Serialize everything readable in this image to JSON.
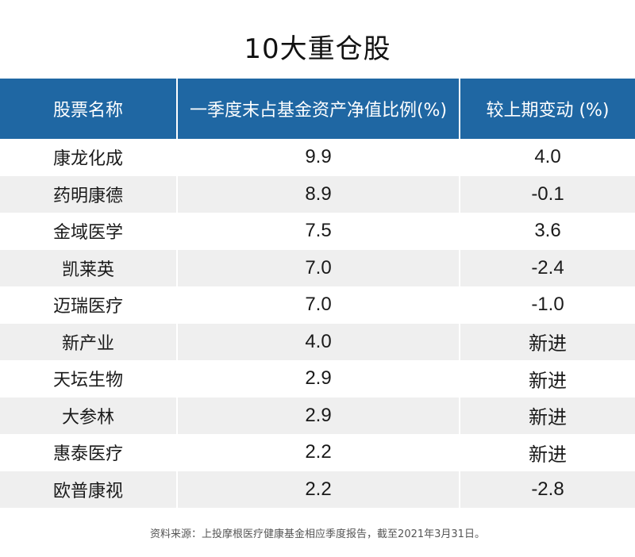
{
  "title": "10大重仓股",
  "table": {
    "headers": [
      "股票名称",
      "一季度末占基金资产净值比例(%)",
      "较上期变动 (%)"
    ],
    "rows": [
      {
        "name": "康龙化成",
        "ratio": "9.9",
        "change": "4.0"
      },
      {
        "name": "药明康德",
        "ratio": "8.9",
        "change": "-0.1"
      },
      {
        "name": "金域医学",
        "ratio": "7.5",
        "change": "3.6"
      },
      {
        "name": "凯莱英",
        "ratio": "7.0",
        "change": "-2.4"
      },
      {
        "name": "迈瑞医疗",
        "ratio": "7.0",
        "change": "-1.0"
      },
      {
        "name": "新产业",
        "ratio": "4.0",
        "change": "新进"
      },
      {
        "name": "天坛生物",
        "ratio": "2.9",
        "change": "新进"
      },
      {
        "name": "大参林",
        "ratio": "2.9",
        "change": "新进"
      },
      {
        "name": "惠泰医疗",
        "ratio": "2.2",
        "change": "新进"
      },
      {
        "name": "欧普康视",
        "ratio": "2.2",
        "change": "-2.8"
      }
    ]
  },
  "footer": "资料来源：上投摩根医疗健康基金相应季度报告，截至2021年3月31日。",
  "colors": {
    "header_bg": "#1f67a3",
    "stripe_bg": "#efefef"
  }
}
